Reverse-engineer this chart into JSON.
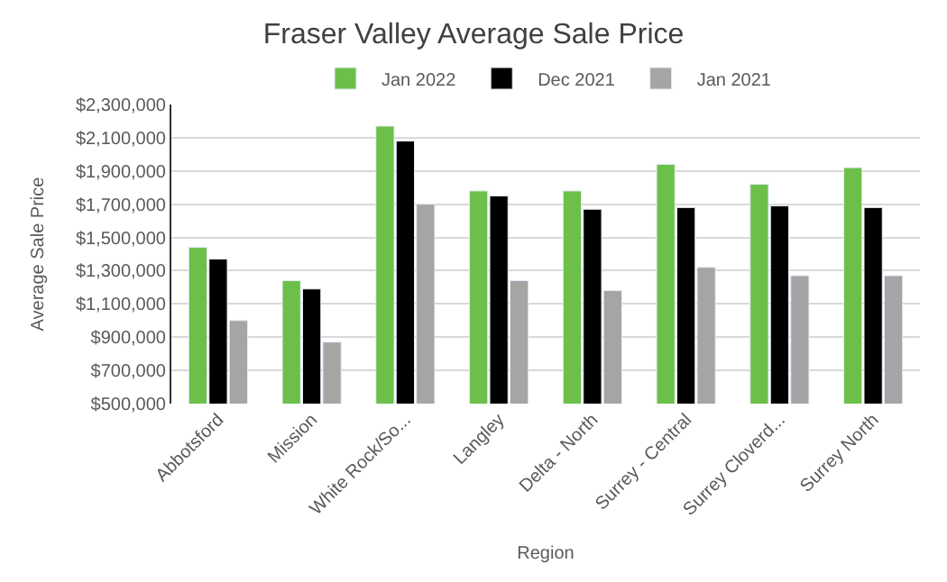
{
  "chart_data": {
    "type": "bar",
    "title": "Fraser Valley Average Sale Price",
    "xlabel": "Region",
    "ylabel": "Average Sale Price",
    "categories": [
      "Abbotsford",
      "Mission",
      "White Rock/So...",
      "Langley",
      "Delta - North",
      "Surrey - Central",
      "Surrey Cloverd...",
      "Surrey North"
    ],
    "series": [
      {
        "name": "Jan 2022",
        "color": "#6cc04a",
        "values": [
          1440000,
          1240000,
          2170000,
          1780000,
          1780000,
          1940000,
          1820000,
          1920000
        ]
      },
      {
        "name": "Dec 2021",
        "color": "#000000",
        "values": [
          1370000,
          1190000,
          2080000,
          1750000,
          1670000,
          1680000,
          1690000,
          1680000
        ]
      },
      {
        "name": "Jan 2021",
        "color": "#a5a5a5",
        "values": [
          1000000,
          870000,
          1700000,
          1240000,
          1180000,
          1320000,
          1270000,
          1270000
        ]
      }
    ],
    "ylim": [
      500000,
      2300000
    ],
    "yticks": [
      {
        "value": 500000,
        "label": "$500,000"
      },
      {
        "value": 700000,
        "label": "$700,000"
      },
      {
        "value": 900000,
        "label": "$900,000"
      },
      {
        "value": 1100000,
        "label": "$1,100,000"
      },
      {
        "value": 1300000,
        "label": "$1,300,000"
      },
      {
        "value": 1500000,
        "label": "$1,500,000"
      },
      {
        "value": 1700000,
        "label": "$1,700,000"
      },
      {
        "value": 1900000,
        "label": "$1,900,000"
      },
      {
        "value": 2100000,
        "label": "$2,100,000"
      },
      {
        "value": 2300000,
        "label": "$2,300,000"
      }
    ],
    "grid": "y",
    "legend": "top"
  }
}
